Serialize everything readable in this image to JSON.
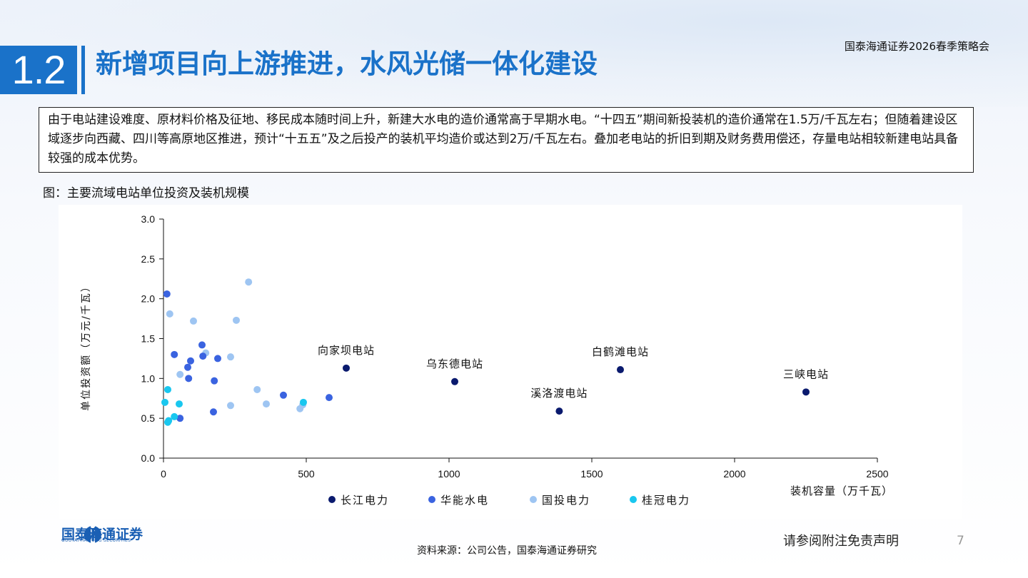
{
  "header": {
    "section_number": "1.2",
    "title": "新增项目向上游推进，水风光储一体化建设",
    "event": "国泰海通证券2026春季策略会"
  },
  "intro_text": "由于电站建设难度、原材料价格及征地、移民成本随时间上升，新建大水电的造价通常高于早期水电。“十四五”期间新投装机的造价通常在1.5万/千瓦左右；但随着建设区域逐步向西藏、四川等高原地区推进，预计“十五五”及之后投产的装机平均造价或达到2万/千瓦左右。叠加老电站的折旧到期及财务费用偿还，存量电站相较新建电站具备较强的成本优势。",
  "figure_caption": "图：主要流域电站单位投资及装机规模",
  "chart_data": {
    "type": "scatter",
    "xlabel": "装机容量（万千瓦）",
    "ylabel": "单位投资额（万元/千瓦）",
    "xlim": [
      0,
      2500
    ],
    "ylim": [
      0,
      3.0
    ],
    "x_ticks": [
      "0",
      "500",
      "1000",
      "1500",
      "2000",
      "2500"
    ],
    "y_ticks": [
      "0.0",
      "0.5",
      "1.0",
      "1.5",
      "2.0",
      "2.5",
      "3.0"
    ],
    "x_tick_values": [
      0,
      500,
      1000,
      1500,
      2000,
      2500
    ],
    "y_tick_values": [
      0,
      0.5,
      1.0,
      1.5,
      2.0,
      2.5,
      3.0
    ],
    "legend_position": "bottom",
    "series": [
      {
        "name": "长江电力",
        "color": "#0a1a6e",
        "points": [
          {
            "x": 640,
            "y": 1.13,
            "label": "向家坝电站"
          },
          {
            "x": 1020,
            "y": 0.96,
            "label": "乌东德电站"
          },
          {
            "x": 1386,
            "y": 0.59,
            "label": "溪洛渡电站"
          },
          {
            "x": 1600,
            "y": 1.11,
            "label": "白鹤滩电站"
          },
          {
            "x": 2250,
            "y": 0.83,
            "label": "三峡电站"
          }
        ]
      },
      {
        "name": "华能水电",
        "color": "#3a63e0",
        "points": [
          {
            "x": 12,
            "y": 2.06
          },
          {
            "x": 38,
            "y": 1.3
          },
          {
            "x": 58,
            "y": 0.5
          },
          {
            "x": 85,
            "y": 1.14
          },
          {
            "x": 88,
            "y": 1.0
          },
          {
            "x": 95,
            "y": 1.22
          },
          {
            "x": 135,
            "y": 1.42
          },
          {
            "x": 138,
            "y": 1.28
          },
          {
            "x": 175,
            "y": 0.58
          },
          {
            "x": 178,
            "y": 0.97
          },
          {
            "x": 190,
            "y": 1.25
          },
          {
            "x": 420,
            "y": 0.79
          },
          {
            "x": 580,
            "y": 0.76
          }
        ]
      },
      {
        "name": "国投电力",
        "color": "#9ec5f2",
        "points": [
          {
            "x": 22,
            "y": 1.81
          },
          {
            "x": 58,
            "y": 1.05
          },
          {
            "x": 105,
            "y": 1.72
          },
          {
            "x": 148,
            "y": 1.32
          },
          {
            "x": 235,
            "y": 1.27
          },
          {
            "x": 235,
            "y": 0.66
          },
          {
            "x": 255,
            "y": 1.73
          },
          {
            "x": 298,
            "y": 2.21
          },
          {
            "x": 328,
            "y": 0.86
          },
          {
            "x": 360,
            "y": 0.68
          },
          {
            "x": 478,
            "y": 0.62
          },
          {
            "x": 488,
            "y": 0.67
          }
        ]
      },
      {
        "name": "桂冠电力",
        "color": "#19c7ef",
        "points": [
          {
            "x": 5,
            "y": 0.7
          },
          {
            "x": 15,
            "y": 0.86
          },
          {
            "x": 15,
            "y": 0.45
          },
          {
            "x": 18,
            "y": 0.47
          },
          {
            "x": 38,
            "y": 0.52
          },
          {
            "x": 55,
            "y": 0.68
          },
          {
            "x": 490,
            "y": 0.7
          }
        ]
      }
    ]
  },
  "footer": {
    "logo_text": "国泰海通证券",
    "logo_sub": "GUOTAI HAITONG SECURITIES",
    "source": "资料来源：公司公告，国泰海通证券研究",
    "disclaimer": "请参阅附注免责声明",
    "page": "7"
  }
}
